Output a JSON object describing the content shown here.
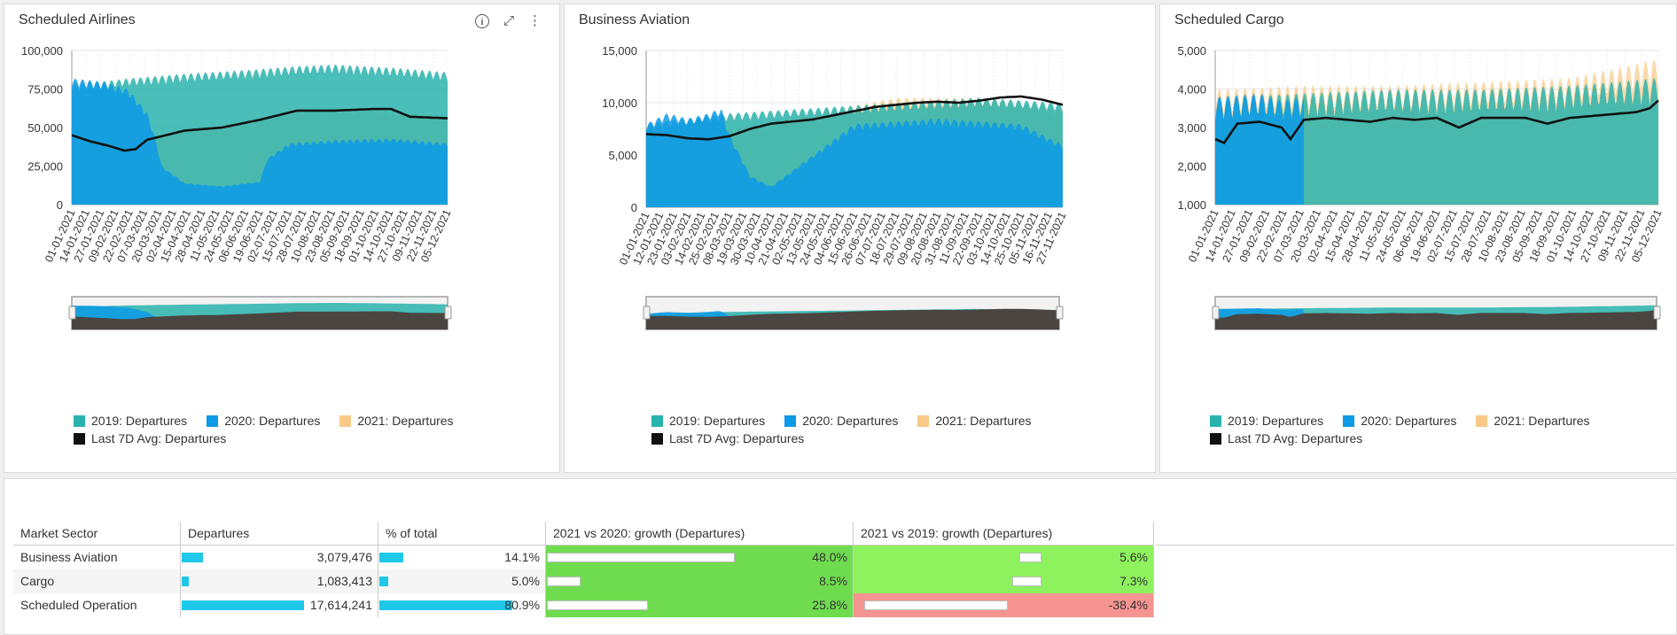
{
  "colors": {
    "s2019": "#2ab3ad",
    "s2020": "#0d9ae6",
    "s2021": "#f8c987",
    "avg": "#111111",
    "growth_pos": "#6fdc4f",
    "growth_pos_light": "#8ef25e",
    "growth_neg": "#f59490",
    "bar": "#1ec8e8"
  },
  "icons": [
    "info-icon",
    "expand-icon",
    "more-vertical-icon"
  ],
  "panels": [
    {
      "title": "Scheduled Airlines",
      "legend": [
        "2019: Departures",
        "2020: Departures",
        "2021: Departures",
        "Last 7D Avg: Departures"
      ]
    },
    {
      "title": "Business Aviation",
      "legend": [
        "2019: Departures",
        "2020: Departures",
        "2021: Departures",
        "Last 7D Avg: Departures"
      ]
    },
    {
      "title": "Scheduled Cargo",
      "legend": [
        "2019: Departures",
        "2020: Departures",
        "2021: Departures",
        "Last 7D Avg: Departures"
      ]
    }
  ],
  "chart_data": [
    {
      "type": "area",
      "title": "Scheduled Airlines",
      "ylim": [
        0,
        100000
      ],
      "yticks": [
        "0",
        "25,000",
        "50,000",
        "75,000",
        "100,000"
      ],
      "xtick_labels": [
        "01-01-2021",
        "14-01-2021",
        "27-01-2021",
        "09-02-2021",
        "22-02-2021",
        "07-03-2021",
        "20-03-2021",
        "02-04-2021",
        "15-04-2021",
        "28-04-2021",
        "11-05-2021",
        "24-05-2021",
        "06-06-2021",
        "19-06-2021",
        "02-07-2021",
        "15-07-2021",
        "28-07-2021",
        "10-08-2021",
        "23-08-2021",
        "05-09-2021",
        "18-09-2021",
        "01-10-2021",
        "14-10-2021",
        "27-10-2021",
        "09-11-2021",
        "22-11-2021",
        "05-12-2021"
      ],
      "series": [
        {
          "name": "2019: Departures",
          "x_frac": [
            0,
            0.08,
            0.15,
            0.3,
            0.5,
            0.6,
            0.7,
            0.85,
            1.0
          ],
          "values": [
            78000,
            80000,
            82000,
            85000,
            88000,
            90000,
            91000,
            89000,
            86000
          ]
        },
        {
          "name": "2020: Departures",
          "x_frac": [
            0,
            0.08,
            0.15,
            0.2,
            0.22,
            0.24,
            0.3,
            0.4,
            0.5,
            0.52,
            0.58,
            0.7,
            0.85,
            1.0
          ],
          "values": [
            82000,
            80000,
            75000,
            60000,
            45000,
            25000,
            14000,
            12000,
            15000,
            30000,
            40000,
            42000,
            43000,
            40000
          ]
        },
        {
          "name": "2021: Departures",
          "x_frac": [
            0,
            0.1,
            0.15,
            0.2,
            0.3,
            0.4,
            0.5,
            0.6,
            0.7,
            0.8,
            0.9,
            1.0
          ],
          "values": [
            46000,
            40000,
            36000,
            42000,
            50000,
            52000,
            57000,
            62000,
            62000,
            63000,
            60000,
            58000
          ]
        },
        {
          "name": "Last 7D Avg: Departures",
          "x_frac": [
            0,
            0.05,
            0.1,
            0.14,
            0.17,
            0.2,
            0.3,
            0.4,
            0.5,
            0.55,
            0.6,
            0.7,
            0.8,
            0.85,
            0.9,
            1.0
          ],
          "values": [
            45000,
            41000,
            38000,
            35000,
            36000,
            42000,
            48000,
            50000,
            55000,
            58000,
            61000,
            61000,
            62000,
            62000,
            57000,
            56000
          ]
        }
      ]
    },
    {
      "type": "area",
      "title": "Business Aviation",
      "ylim": [
        0,
        15000
      ],
      "yticks": [
        "0",
        "5,000",
        "10,000",
        "15,000"
      ],
      "xtick_labels": [
        "01-01-2021",
        "12-01-2021",
        "23-01-2021",
        "03-02-2021",
        "14-02-2021",
        "25-02-2021",
        "08-03-2021",
        "19-03-2021",
        "30-03-2021",
        "10-04-2021",
        "21-04-2021",
        "02-05-2021",
        "13-05-2021",
        "24-05-2021",
        "04-06-2021",
        "15-06-2021",
        "26-06-2021",
        "07-07-2021",
        "18-07-2021",
        "29-07-2021",
        "09-08-2021",
        "20-08-2021",
        "31-08-2021",
        "11-09-2021",
        "22-09-2021",
        "03-10-2021",
        "14-10-2021",
        "25-10-2021",
        "05-11-2021",
        "16-11-2021",
        "27-11-2021"
      ],
      "series": [
        {
          "name": "2019: Departures",
          "x_frac": [
            0,
            0.2,
            0.4,
            0.6,
            0.8,
            1.0
          ],
          "values": [
            8000,
            9000,
            9500,
            10000,
            10500,
            10000
          ]
        },
        {
          "name": "2020: Departures",
          "x_frac": [
            0,
            0.05,
            0.1,
            0.15,
            0.18,
            0.2,
            0.25,
            0.3,
            0.4,
            0.5,
            0.7,
            0.9,
            1.0
          ],
          "values": [
            8000,
            9000,
            8500,
            9000,
            9500,
            7000,
            3000,
            2000,
            5000,
            8000,
            8500,
            8000,
            6000
          ]
        },
        {
          "name": "2021: Departures",
          "x_frac": [
            0,
            0.2,
            0.4,
            0.6,
            0.8,
            1.0
          ],
          "values": [
            6000,
            7500,
            9000,
            10500,
            10500,
            9500
          ]
        },
        {
          "name": "Last 7D Avg: Departures",
          "x_frac": [
            0,
            0.05,
            0.1,
            0.15,
            0.2,
            0.25,
            0.3,
            0.35,
            0.4,
            0.45,
            0.5,
            0.55,
            0.6,
            0.65,
            0.7,
            0.75,
            0.8,
            0.85,
            0.9,
            0.95,
            1.0
          ],
          "values": [
            7000,
            6900,
            6600,
            6500,
            6800,
            7500,
            8000,
            8200,
            8400,
            8800,
            9200,
            9600,
            9800,
            10000,
            10100,
            10000,
            10200,
            10500,
            10600,
            10300,
            9800
          ]
        }
      ]
    },
    {
      "type": "area",
      "title": "Scheduled Cargo",
      "ylim": [
        1000,
        5000
      ],
      "yticks": [
        "1,000",
        "2,000",
        "3,000",
        "4,000",
        "5,000"
      ],
      "xtick_labels": [
        "01-01-2021",
        "14-01-2021",
        "27-01-2021",
        "09-02-2021",
        "22-02-2021",
        "07-03-2021",
        "20-03-2021",
        "02-04-2021",
        "15-04-2021",
        "28-04-2021",
        "11-05-2021",
        "24-05-2021",
        "06-06-2021",
        "19-06-2021",
        "02-07-2021",
        "15-07-2021",
        "28-07-2021",
        "10-08-2021",
        "23-08-2021",
        "05-09-2021",
        "18-09-2021",
        "01-10-2021",
        "14-10-2021",
        "27-10-2021",
        "09-11-2021",
        "22-11-2021",
        "05-12-2021"
      ],
      "series": [
        {
          "name": "2019: Departures",
          "x_frac": [
            0,
            0.2,
            0.4,
            0.6,
            0.8,
            1.0
          ],
          "values": [
            3800,
            3900,
            4000,
            4000,
            4100,
            4300
          ]
        },
        {
          "name": "2020: Departures",
          "x_frac": [
            0,
            0.1,
            0.15,
            0.2
          ],
          "values": [
            3800,
            3900,
            3700,
            3800
          ]
        },
        {
          "name": "2021: Departures",
          "x_frac": [
            0,
            0.2,
            0.4,
            0.6,
            0.8,
            1.0
          ],
          "values": [
            4000,
            4100,
            4100,
            4200,
            4300,
            4800
          ]
        },
        {
          "name": "Last 7D Avg: Departures",
          "x_frac": [
            0,
            0.02,
            0.05,
            0.1,
            0.15,
            0.17,
            0.2,
            0.25,
            0.3,
            0.35,
            0.4,
            0.45,
            0.5,
            0.55,
            0.6,
            0.65,
            0.7,
            0.75,
            0.8,
            0.85,
            0.9,
            0.95,
            0.98,
            1.0
          ],
          "values": [
            2700,
            2600,
            3100,
            3150,
            3000,
            2700,
            3200,
            3250,
            3200,
            3150,
            3250,
            3200,
            3250,
            3000,
            3250,
            3250,
            3250,
            3100,
            3250,
            3300,
            3350,
            3400,
            3500,
            3700
          ]
        }
      ]
    }
  ],
  "table": {
    "columns": [
      "Market Sector",
      "Departures",
      "% of total",
      "2021 vs 2020: growth (Departures)",
      "2021 vs 2019: growth (Departures)"
    ],
    "rows": [
      {
        "sector": "Business Aviation",
        "departures": "3,079,476",
        "dep_value": 3079476,
        "pct": "14.1%",
        "pct_value": 14.1,
        "g2020": "48.0%",
        "g2020_value": 48.0,
        "g2019": "5.6%",
        "g2019_value": 5.6
      },
      {
        "sector": "Cargo",
        "departures": "1,083,413",
        "dep_value": 1083413,
        "pct": "5.0%",
        "pct_value": 5.0,
        "g2020": "8.5%",
        "g2020_value": 8.5,
        "g2019": "7.3%",
        "g2019_value": 7.3
      },
      {
        "sector": "Scheduled Operation",
        "departures": "17,614,241",
        "dep_value": 17614241,
        "pct": "80.9%",
        "pct_value": 80.9,
        "g2020": "25.8%",
        "g2020_value": 25.8,
        "g2019": "-38.4%",
        "g2019_value": -38.4
      }
    ]
  }
}
